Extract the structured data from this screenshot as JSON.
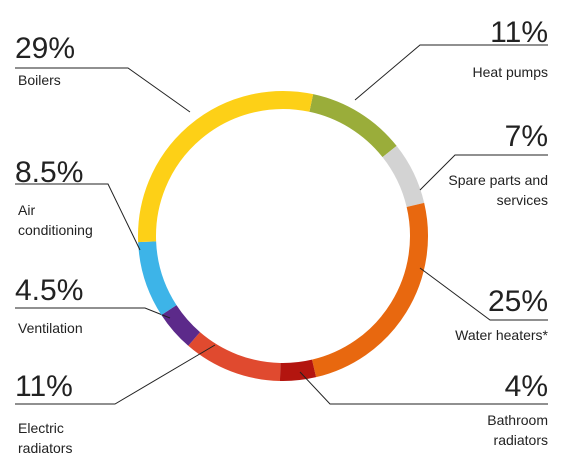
{
  "chart_data": {
    "type": "donut",
    "categories": [
      "Heat pumps",
      "Spare parts and services",
      "Water heaters*",
      "Bathroom radiators",
      "Electric radiators",
      "Ventilation",
      "Air conditioning",
      "Boilers"
    ],
    "values": [
      11,
      7,
      25,
      4,
      11,
      4.5,
      8.5,
      29
    ],
    "value_labels": [
      "11%",
      "7%",
      "25%",
      "4%",
      "11%",
      "4.5%",
      "8.5%",
      "29%"
    ],
    "colors": [
      "#9aad3a",
      "#d3d3d3",
      "#e8680f",
      "#b3150f",
      "#e04a2f",
      "#5c2a8a",
      "#3db4e8",
      "#fdd017"
    ]
  }
}
